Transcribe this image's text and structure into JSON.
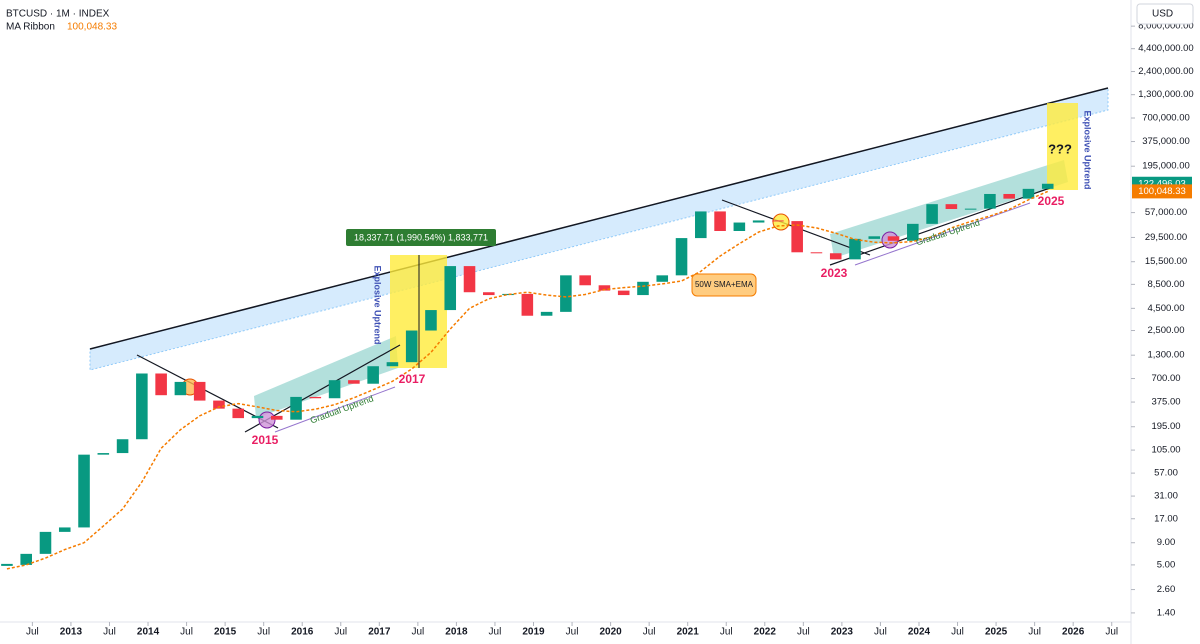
{
  "chart_data": {
    "type": "candlestick",
    "symbol_label": "BTCUSD · 1M · INDEX",
    "indicator_name": "MA Ribbon",
    "ma_value": {
      "value": 100048.33,
      "label": "100,048.33"
    },
    "last_price": {
      "value": 122496.03,
      "label": "122,496.03"
    },
    "currency_button": "USD",
    "log_scale": true,
    "grid": false,
    "up_color": "#089981",
    "down_color": "#f23645",
    "ma_color": "#f57c00",
    "x": [
      2012.17,
      2012.42,
      2012.67,
      2012.92,
      2013.17,
      2013.42,
      2013.67,
      2013.92,
      2014.17,
      2014.42,
      2014.67,
      2014.92,
      2015.17,
      2015.42,
      2015.67,
      2015.92,
      2016.17,
      2016.42,
      2016.67,
      2016.92,
      2017.17,
      2017.42,
      2017.67,
      2017.92,
      2018.17,
      2018.42,
      2018.67,
      2018.92,
      2019.17,
      2019.42,
      2019.67,
      2019.92,
      2020.17,
      2020.42,
      2020.67,
      2020.92,
      2021.17,
      2021.42,
      2021.67,
      2021.92,
      2022.17,
      2022.42,
      2022.67,
      2022.92,
      2023.17,
      2023.42,
      2023.67,
      2023.92,
      2024.17,
      2024.42,
      2024.67,
      2024.92,
      2025.17,
      2025.42,
      2025.67
    ],
    "series": [
      {
        "name": "BTCUSD",
        "values": [
          5,
          6.7,
          12,
          13.5,
          93,
          97,
          140,
          800,
          450,
          640,
          390,
          315,
          245,
          260,
          235,
          430,
          415,
          670,
          610,
          970,
          1080,
          2500,
          4300,
          13800,
          6900,
          6400,
          6600,
          3700,
          4100,
          10800,
          8300,
          7200,
          6400,
          9100,
          10800,
          29000,
          58800,
          35000,
          43800,
          46300,
          45500,
          19900,
          19400,
          16500,
          28400,
          30400,
          27000,
          42300,
          71300,
          62700,
          63300,
          93400,
          82500,
          107000,
          122496.03
        ]
      },
      {
        "name": "50W SMA+EMA",
        "values": [
          4.5,
          5,
          6,
          7.5,
          9,
          14,
          22,
          45,
          110,
          180,
          260,
          330,
          360,
          330,
          300,
          290,
          310,
          350,
          420,
          520,
          650,
          900,
          1400,
          2600,
          4500,
          5800,
          6500,
          6900,
          6400,
          6100,
          6500,
          7400,
          7800,
          8100,
          8600,
          9300,
          12000,
          18000,
          25000,
          34000,
          40000,
          41000,
          38000,
          33000,
          28000,
          26000,
          25500,
          26500,
          30000,
          38000,
          45000,
          52000,
          62000,
          80000,
          100048.33
        ]
      }
    ],
    "xlim": [
      2012.08,
      2026.75
    ],
    "xticks": [
      {
        "value": 2012.5,
        "label": "Jul"
      },
      {
        "value": 2013,
        "label": "2013"
      },
      {
        "value": 2013.5,
        "label": "Jul"
      },
      {
        "value": 2014,
        "label": "2014"
      },
      {
        "value": 2014.5,
        "label": "Jul"
      },
      {
        "value": 2015,
        "label": "2015"
      },
      {
        "value": 2015.5,
        "label": "Jul"
      },
      {
        "value": 2016,
        "label": "2016"
      },
      {
        "value": 2016.5,
        "label": "Jul"
      },
      {
        "value": 2017,
        "label": "2017"
      },
      {
        "value": 2017.5,
        "label": "Jul"
      },
      {
        "value": 2018,
        "label": "2018"
      },
      {
        "value": 2018.5,
        "label": "Jul"
      },
      {
        "value": 2019,
        "label": "2019"
      },
      {
        "value": 2019.5,
        "label": "Jul"
      },
      {
        "value": 2020,
        "label": "2020"
      },
      {
        "value": 2020.5,
        "label": "Jul"
      },
      {
        "value": 2021,
        "label": "2021"
      },
      {
        "value": 2021.5,
        "label": "Jul"
      },
      {
        "value": 2022,
        "label": "2022"
      },
      {
        "value": 2022.5,
        "label": "Jul"
      },
      {
        "value": 2023,
        "label": "2023"
      },
      {
        "value": 2023.5,
        "label": "Jul"
      },
      {
        "value": 2024,
        "label": "2024"
      },
      {
        "value": 2024.5,
        "label": "Jul"
      },
      {
        "value": 2025,
        "label": "2025"
      },
      {
        "value": 2025.5,
        "label": "Jul"
      },
      {
        "value": 2026,
        "label": "2026"
      },
      {
        "value": 2026.5,
        "label": "Jul"
      }
    ],
    "ylim": [
      1.1,
      16000000
    ],
    "yticks": [
      {
        "value": 1.4,
        "label": "1.40"
      },
      {
        "value": 2.6,
        "label": "2.60"
      },
      {
        "value": 5,
        "label": "5.00"
      },
      {
        "value": 9,
        "label": "9.00"
      },
      {
        "value": 17,
        "label": "17.00"
      },
      {
        "value": 31,
        "label": "31.00"
      },
      {
        "value": 57,
        "label": "57.00"
      },
      {
        "value": 105,
        "label": "105.00"
      },
      {
        "value": 195,
        "label": "195.00"
      },
      {
        "value": 375,
        "label": "375.00"
      },
      {
        "value": 700,
        "label": "700.00"
      },
      {
        "value": 1300,
        "label": "1,300.00"
      },
      {
        "value": 2500,
        "label": "2,500.00"
      },
      {
        "value": 4500,
        "label": "4,500.00"
      },
      {
        "value": 8500,
        "label": "8,500.00"
      },
      {
        "value": 15500,
        "label": "15,500.00"
      },
      {
        "value": 29500,
        "label": "29,500.00"
      },
      {
        "value": 57000,
        "label": "57,000.00"
      },
      {
        "value": 195000,
        "label": "195,000.00"
      },
      {
        "value": 375000,
        "label": "375,000.00"
      },
      {
        "value": 700000,
        "label": "700,000.00"
      },
      {
        "value": 1300000,
        "label": "1,300,000.00"
      },
      {
        "value": 2400000,
        "label": "2,400,000.00"
      },
      {
        "value": 4400000,
        "label": "4,400,000.00"
      },
      {
        "value": 8000000,
        "label": "8,000,000.00"
      }
    ],
    "annotations": {
      "year_2015": "2015",
      "year_2017": "2017",
      "year_2023": "2023",
      "year_2025": "2025",
      "gradual_1": "Gradual Uptrend",
      "gradual_2": "Gradual Uptrend",
      "explosive_1": "Explosive Uptrend",
      "explosive_2": "Explosive Uptrend",
      "ma_note": "50W SMA+EMA",
      "question": "???",
      "measure": "18,337.71 (1,990.54%) 1,833,771"
    }
  }
}
